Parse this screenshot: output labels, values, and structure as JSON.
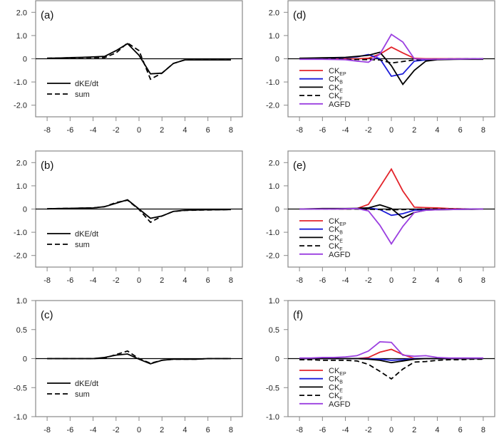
{
  "colors": {
    "CK_EP": "#e3242b",
    "CK_B": "#1c1cd9",
    "CK_E": "#000000",
    "CK_F": "#000000",
    "AGFD": "#9b3fe0",
    "dKE_dt": "#000000",
    "sum": "#000000",
    "axis": "#888888"
  },
  "chart_data": [
    {
      "id": "a",
      "label": "(a)",
      "type": "line",
      "x": [
        -8,
        -7,
        -6,
        -5,
        -4,
        -3,
        -2,
        -1,
        0,
        1,
        2,
        3,
        4,
        5,
        6,
        7,
        8
      ],
      "xticks": [
        -8,
        -6,
        -4,
        -2,
        0,
        2,
        4,
        6,
        8
      ],
      "xlim": [
        -9,
        9
      ],
      "ylim": [
        -2.5,
        2.5
      ],
      "yticks": [
        2.0,
        1.0,
        0,
        -1.0,
        -2.0
      ],
      "ytick_labels": [
        "2.0",
        "1.0",
        "0",
        "-1.0",
        "-2.0"
      ],
      "legend_position": "lower-left",
      "series": [
        {
          "name": "dKE/dt",
          "style": "solid",
          "color_key": "dKE_dt",
          "values": [
            0.02,
            0.03,
            0.05,
            0.06,
            0.08,
            0.1,
            0.35,
            0.65,
            0.15,
            -0.65,
            -0.62,
            -0.2,
            -0.05,
            -0.05,
            -0.05,
            -0.05,
            -0.05
          ]
        },
        {
          "name": "sum",
          "style": "dashed",
          "color_key": "sum",
          "values": [
            0.02,
            0.03,
            0.04,
            0.05,
            0.05,
            0.05,
            0.25,
            0.68,
            0.35,
            -0.88,
            -0.62,
            -0.2,
            -0.05,
            -0.05,
            -0.05,
            -0.05,
            -0.05
          ]
        }
      ]
    },
    {
      "id": "b",
      "label": "(b)",
      "type": "line",
      "x": [
        -8,
        -7,
        -6,
        -5,
        -4,
        -3,
        -2,
        -1,
        0,
        1,
        2,
        3,
        4,
        5,
        6,
        7,
        8
      ],
      "xticks": [
        -8,
        -6,
        -4,
        -2,
        0,
        2,
        4,
        6,
        8
      ],
      "xlim": [
        -9,
        9
      ],
      "ylim": [
        -2.5,
        2.5
      ],
      "yticks": [
        2.0,
        1.0,
        0,
        -1.0,
        -2.0
      ],
      "ytick_labels": [
        "2.0",
        "1.0",
        "0",
        "-1.0",
        "-2.0"
      ],
      "legend_position": "lower-left",
      "series": [
        {
          "name": "dKE/dt",
          "style": "solid",
          "color_key": "dKE_dt",
          "values": [
            0.01,
            0.02,
            0.03,
            0.04,
            0.05,
            0.1,
            0.25,
            0.4,
            0.0,
            -0.4,
            -0.3,
            -0.1,
            -0.05,
            -0.04,
            -0.03,
            -0.03,
            -0.02
          ]
        },
        {
          "name": "sum",
          "style": "dashed",
          "color_key": "sum",
          "values": [
            0.01,
            0.02,
            0.03,
            0.04,
            0.05,
            0.1,
            0.28,
            0.38,
            -0.02,
            -0.57,
            -0.3,
            -0.1,
            -0.06,
            -0.05,
            -0.04,
            -0.03,
            -0.02
          ]
        }
      ]
    },
    {
      "id": "c",
      "label": "(c)",
      "type": "line",
      "x": [
        -8,
        -7,
        -6,
        -5,
        -4,
        -3,
        -2,
        -1,
        0,
        1,
        2,
        3,
        4,
        5,
        6,
        7,
        8
      ],
      "xticks": [
        -8,
        -6,
        -4,
        -2,
        0,
        2,
        4,
        6,
        8
      ],
      "xlim": [
        -9,
        9
      ],
      "ylim": [
        -1.0,
        1.0
      ],
      "yticks": [
        1.0,
        0.5,
        0,
        -0.5,
        -1.0
      ],
      "ytick_labels": [
        "1.0",
        "0.5",
        "0",
        "-0.5",
        "-1.0"
      ],
      "legend_position": "lower-left",
      "series": [
        {
          "name": "dKE/dt",
          "style": "solid",
          "color_key": "dKE_dt",
          "values": [
            0.0,
            0.0,
            0.0,
            0.0,
            0.0,
            0.02,
            0.06,
            0.08,
            -0.01,
            -0.09,
            -0.03,
            -0.01,
            -0.01,
            -0.01,
            0.0,
            0.0,
            0.0
          ]
        },
        {
          "name": "sum",
          "style": "dashed",
          "color_key": "sum",
          "values": [
            0.0,
            0.0,
            0.0,
            0.0,
            0.0,
            0.01,
            0.07,
            0.13,
            0.0,
            -0.08,
            -0.03,
            -0.01,
            -0.01,
            -0.01,
            0.0,
            0.0,
            0.0
          ]
        }
      ]
    },
    {
      "id": "d",
      "label": "(d)",
      "type": "line",
      "x": [
        -8,
        -7,
        -6,
        -5,
        -4,
        -3,
        -2,
        -1,
        0,
        1,
        2,
        3,
        4,
        5,
        6,
        7,
        8
      ],
      "xticks": [
        -8,
        -6,
        -4,
        -2,
        0,
        2,
        4,
        6,
        8
      ],
      "xlim": [
        -9,
        9
      ],
      "ylim": [
        -2.5,
        2.5
      ],
      "yticks": [
        2.0,
        1.0,
        0,
        -1.0,
        -2.0
      ],
      "ytick_labels": [
        "2.0",
        "1.0",
        "0",
        "-1.0",
        "-2.0"
      ],
      "legend_position": "lower-left",
      "series": [
        {
          "name": "CK",
          "sub": "EP",
          "style": "solid",
          "color_key": "CK_EP",
          "values": [
            0.0,
            0.0,
            0.0,
            0.0,
            0.0,
            0.0,
            0.02,
            0.2,
            0.5,
            0.25,
            0.02,
            0.0,
            0.0,
            0.0,
            0.0,
            0.0,
            0.0
          ]
        },
        {
          "name": "CK",
          "sub": "B",
          "style": "solid",
          "color_key": "CK_B",
          "values": [
            0.01,
            0.02,
            0.03,
            0.04,
            0.05,
            0.08,
            0.18,
            0.0,
            -0.75,
            -0.65,
            -0.1,
            -0.05,
            -0.03,
            -0.02,
            -0.01,
            -0.01,
            0.0
          ]
        },
        {
          "name": "CK",
          "sub": "E",
          "style": "solid",
          "color_key": "CK_E",
          "values": [
            0.02,
            0.03,
            0.04,
            0.05,
            0.06,
            0.1,
            0.15,
            0.28,
            -0.3,
            -1.1,
            -0.5,
            -0.1,
            -0.04,
            -0.03,
            -0.02,
            -0.02,
            -0.02
          ]
        },
        {
          "name": "CK",
          "sub": "F",
          "style": "dashed",
          "color_key": "CK_F",
          "values": [
            0.0,
            0.0,
            0.0,
            0.0,
            -0.02,
            -0.03,
            -0.04,
            -0.05,
            -0.18,
            -0.12,
            -0.05,
            -0.03,
            -0.02,
            -0.01,
            -0.01,
            0.0,
            0.0
          ]
        },
        {
          "name": "AGFD",
          "sub": "",
          "style": "solid",
          "color_key": "AGFD",
          "values": [
            -0.02,
            -0.02,
            -0.02,
            -0.03,
            -0.04,
            -0.1,
            -0.15,
            0.2,
            1.05,
            0.72,
            0.0,
            -0.02,
            -0.02,
            -0.01,
            -0.01,
            0.0,
            0.0
          ]
        }
      ]
    },
    {
      "id": "e",
      "label": "(e)",
      "type": "line",
      "x": [
        -8,
        -7,
        -6,
        -5,
        -4,
        -3,
        -2,
        -1,
        0,
        1,
        2,
        3,
        4,
        5,
        6,
        7,
        8
      ],
      "xticks": [
        -8,
        -6,
        -4,
        -2,
        0,
        2,
        4,
        6,
        8
      ],
      "xlim": [
        -9,
        9
      ],
      "ylim": [
        -2.5,
        2.5
      ],
      "yticks": [
        2.0,
        1.0,
        0,
        -1.0,
        -2.0
      ],
      "ytick_labels": [
        "2.0",
        "1.0",
        "0",
        "-1.0",
        "-2.0"
      ],
      "legend_position": "lower-left",
      "series": [
        {
          "name": "CK",
          "sub": "EP",
          "style": "solid",
          "color_key": "CK_EP",
          "values": [
            0.0,
            0.0,
            0.0,
            0.0,
            0.0,
            0.02,
            0.2,
            0.95,
            1.72,
            0.78,
            0.08,
            0.06,
            0.05,
            0.02,
            0.01,
            0.0,
            0.0
          ]
        },
        {
          "name": "CK",
          "sub": "B",
          "style": "solid",
          "color_key": "CK_B",
          "values": [
            0.0,
            0.0,
            0.01,
            0.01,
            0.01,
            0.02,
            0.05,
            -0.02,
            -0.27,
            -0.2,
            -0.05,
            -0.03,
            -0.02,
            -0.01,
            -0.01,
            0.0,
            0.0
          ]
        },
        {
          "name": "CK",
          "sub": "E",
          "style": "solid",
          "color_key": "CK_E",
          "values": [
            0.0,
            0.01,
            0.02,
            0.02,
            0.02,
            0.03,
            0.05,
            0.18,
            0.02,
            -0.38,
            -0.15,
            -0.05,
            -0.03,
            -0.02,
            -0.01,
            -0.01,
            0.0
          ]
        },
        {
          "name": "CK",
          "sub": "F",
          "style": "dashed",
          "color_key": "CK_F",
          "values": [
            0.0,
            0.0,
            0.0,
            0.0,
            0.0,
            0.0,
            -0.01,
            -0.02,
            -0.03,
            -0.02,
            -0.01,
            0.0,
            0.0,
            0.0,
            0.0,
            0.0,
            0.0
          ]
        },
        {
          "name": "AGFD",
          "sub": "",
          "style": "solid",
          "color_key": "AGFD",
          "values": [
            0.0,
            0.0,
            0.0,
            0.0,
            0.01,
            0.02,
            -0.08,
            -0.7,
            -1.5,
            -0.75,
            -0.15,
            -0.05,
            -0.03,
            -0.02,
            -0.01,
            0.0,
            0.0
          ]
        }
      ]
    },
    {
      "id": "f",
      "label": "(f)",
      "type": "line",
      "x": [
        -8,
        -7,
        -6,
        -5,
        -4,
        -3,
        -2,
        -1,
        0,
        1,
        2,
        3,
        4,
        5,
        6,
        7,
        8
      ],
      "xticks": [
        -8,
        -6,
        -4,
        -2,
        0,
        2,
        4,
        6,
        8
      ],
      "xlim": [
        -9,
        9
      ],
      "ylim": [
        -1.0,
        1.0
      ],
      "yticks": [
        1.0,
        0.5,
        0,
        -0.5,
        -1.0
      ],
      "ytick_labels": [
        "1.0",
        "0.5",
        "0",
        "-0.5",
        "-1.0"
      ],
      "legend_position": "lower-left",
      "series": [
        {
          "name": "CK",
          "sub": "EP",
          "style": "solid",
          "color_key": "CK_EP",
          "values": [
            0.0,
            0.0,
            0.0,
            0.0,
            0.0,
            0.0,
            0.02,
            0.11,
            0.16,
            0.07,
            0.0,
            0.0,
            0.0,
            0.0,
            0.0,
            0.0,
            0.0
          ]
        },
        {
          "name": "CK",
          "sub": "B",
          "style": "solid",
          "color_key": "CK_B",
          "values": [
            0.0,
            0.0,
            0.0,
            0.0,
            0.0,
            0.0,
            0.0,
            -0.01,
            -0.03,
            -0.02,
            0.0,
            0.0,
            0.0,
            0.0,
            0.0,
            0.0,
            0.0
          ]
        },
        {
          "name": "CK",
          "sub": "E",
          "style": "solid",
          "color_key": "CK_E",
          "values": [
            0.0,
            0.0,
            0.0,
            0.0,
            0.0,
            0.0,
            -0.01,
            -0.03,
            -0.07,
            -0.04,
            -0.01,
            0.0,
            0.0,
            0.0,
            0.0,
            0.0,
            0.0
          ]
        },
        {
          "name": "CK",
          "sub": "F",
          "style": "dashed",
          "color_key": "CK_F",
          "values": [
            -0.02,
            -0.02,
            -0.03,
            -0.03,
            -0.03,
            -0.04,
            -0.1,
            -0.22,
            -0.35,
            -0.18,
            -0.06,
            -0.05,
            -0.03,
            -0.02,
            -0.02,
            -0.01,
            -0.01
          ]
        },
        {
          "name": "AGFD",
          "sub": "",
          "style": "solid",
          "color_key": "AGFD",
          "values": [
            0.01,
            0.01,
            0.02,
            0.02,
            0.03,
            0.05,
            0.13,
            0.29,
            0.28,
            0.06,
            0.04,
            0.05,
            0.02,
            0.01,
            0.01,
            0.01,
            0.01
          ]
        }
      ]
    }
  ]
}
